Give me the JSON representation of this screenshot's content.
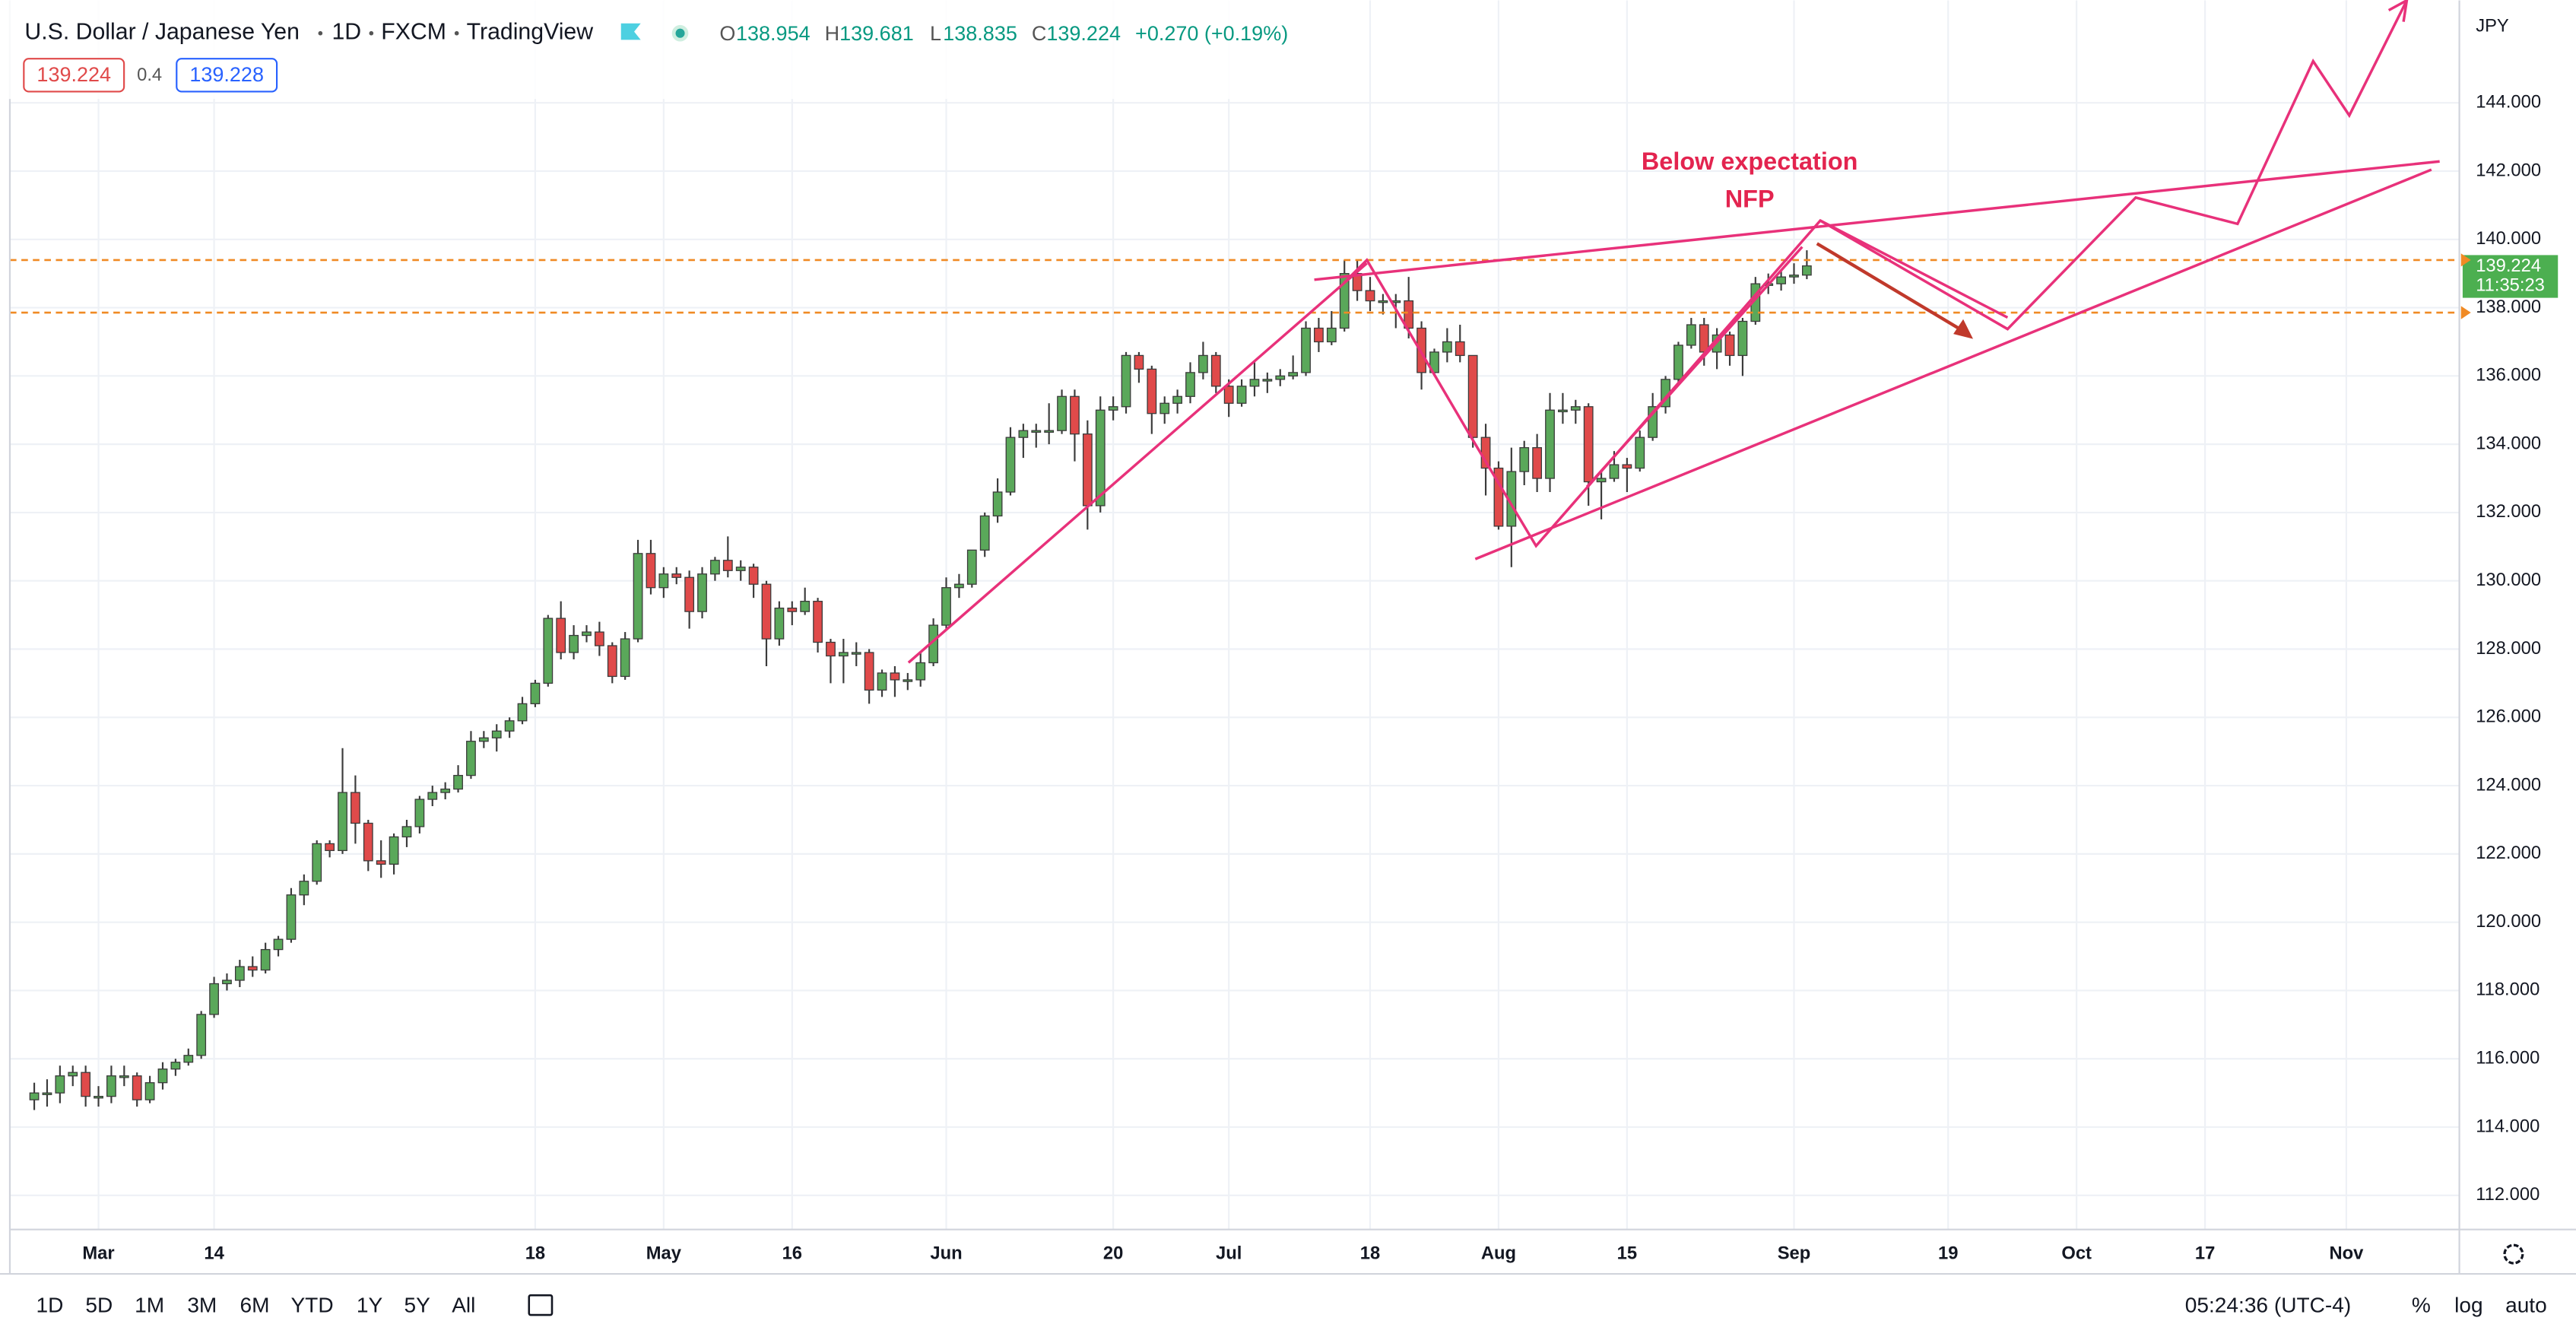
{
  "chart_data": {
    "type": "candlestick",
    "title": "U.S. Dollar / Japanese Yen",
    "interval": "1D",
    "source": "FXCM",
    "platform": "TradingView",
    "ohlc_prefixes": [
      "O",
      "H",
      "L",
      "C"
    ],
    "change": "+0.270 (+0.19%)",
    "quote": {
      "bid": "139.224",
      "spread": "0.4",
      "ask": "139.228"
    },
    "currency": "JPY",
    "countdown": "11:35:23",
    "annotation": [
      "Below expectation",
      "NFP"
    ],
    "up_color": "#5aa85a",
    "down_color": "#e04a4a",
    "grid": true,
    "xlim": [
      -1.9,
      188.8
    ],
    "xticks": [
      {
        "value": 5,
        "label": "Mar"
      },
      14,
      {
        "value": 39,
        "label": "18"
      },
      {
        "value": 49,
        "label": "May"
      },
      {
        "value": 59,
        "label": "16"
      },
      {
        "value": 71,
        "label": "Jun"
      },
      {
        "value": 84,
        "label": "20"
      },
      {
        "value": 93,
        "label": "Jul"
      },
      {
        "value": 104,
        "label": "18"
      },
      {
        "value": 114,
        "label": "Aug"
      },
      {
        "value": 124,
        "label": "15"
      },
      {
        "value": 137,
        "label": "Sep"
      },
      {
        "value": 149,
        "label": "19"
      },
      {
        "value": 159,
        "label": "Oct"
      },
      {
        "value": 169,
        "label": "17"
      },
      {
        "value": 180,
        "label": "Nov"
      }
    ],
    "ylim": [
      111,
      147
    ],
    "yticks": [
      {
        "value": 112,
        "label": "112.000"
      },
      {
        "value": 114,
        "label": "114.000"
      },
      {
        "value": 116,
        "label": "116.000"
      },
      {
        "value": 118,
        "label": "118.000"
      },
      {
        "value": 120,
        "label": "120.000"
      },
      {
        "value": 122,
        "label": "122.000"
      },
      {
        "value": 124,
        "label": "124.000"
      },
      {
        "value": 126,
        "label": "126.000"
      },
      {
        "value": 128,
        "label": "128.000"
      },
      {
        "value": 130,
        "label": "130.000"
      },
      {
        "value": 132,
        "label": "132.000"
      },
      {
        "value": 134,
        "label": "134.000"
      },
      {
        "value": 136,
        "label": "136.000"
      },
      {
        "value": 138,
        "label": "138.000"
      },
      {
        "value": 140,
        "label": "140.000"
      },
      {
        "value": 142,
        "label": "142.000"
      },
      {
        "value": 144,
        "label": "144.000"
      }
    ],
    "open": [
      114.8,
      115.0,
      115.0,
      115.5,
      115.6,
      114.9,
      114.9,
      115.5,
      115.5,
      114.8,
      115.3,
      115.7,
      115.9,
      116.1,
      117.3,
      118.2,
      118.3,
      118.7,
      118.6,
      119.2,
      119.5,
      120.8,
      121.2,
      122.3,
      122.1,
      123.8,
      122.9,
      121.8,
      121.7,
      122.5,
      122.8,
      123.6,
      123.8,
      123.9,
      124.3,
      125.3,
      125.4,
      125.6,
      125.9,
      126.4,
      127.0,
      128.9,
      127.9,
      128.4,
      128.5,
      128.1,
      127.2,
      128.3,
      130.8,
      129.8,
      130.2,
      130.1,
      129.1,
      130.2,
      130.6,
      130.3,
      130.4,
      129.9,
      128.3,
      129.2,
      129.1,
      129.4,
      128.2,
      127.8,
      127.9,
      127.9,
      126.8,
      127.3,
      127.1,
      127.1,
      127.6,
      128.7,
      129.8,
      129.9,
      130.9,
      131.9,
      132.6,
      134.2,
      134.4,
      134.4,
      134.4,
      135.4,
      134.3,
      132.2,
      135.0,
      135.1,
      136.6,
      136.2,
      134.9,
      135.2,
      135.4,
      136.1,
      136.6,
      135.7,
      135.2,
      135.7,
      135.9,
      135.9,
      136.0,
      136.1,
      137.4,
      137.0,
      137.4,
      139.0,
      138.5,
      138.2,
      138.2,
      138.2,
      137.4,
      136.1,
      136.7,
      137.0,
      136.6,
      134.2,
      133.3,
      131.6,
      133.2,
      133.9,
      133.0,
      135.0,
      135.0,
      135.1,
      132.9,
      133.0,
      133.4,
      133.3,
      134.2,
      135.1,
      135.9,
      136.9,
      137.5,
      136.7,
      137.2,
      136.6,
      137.6,
      138.7,
      138.7,
      138.9,
      138.954
    ],
    "high": [
      115.3,
      115.4,
      115.8,
      115.8,
      115.8,
      115.2,
      115.8,
      115.8,
      115.6,
      115.5,
      115.9,
      116.0,
      116.3,
      117.4,
      118.4,
      118.5,
      118.9,
      119.0,
      119.4,
      119.6,
      121.0,
      121.4,
      122.4,
      122.4,
      125.1,
      124.3,
      123.0,
      122.4,
      122.6,
      123.0,
      123.7,
      124.0,
      124.1,
      124.6,
      125.6,
      125.6,
      125.8,
      126.0,
      126.6,
      127.1,
      129.0,
      129.4,
      128.7,
      128.7,
      128.8,
      128.2,
      128.5,
      131.2,
      131.2,
      130.4,
      130.4,
      130.3,
      130.4,
      130.7,
      131.3,
      130.6,
      130.5,
      130.0,
      129.4,
      129.4,
      129.8,
      129.5,
      128.3,
      128.3,
      128.2,
      128.0,
      127.4,
      127.5,
      127.3,
      127.9,
      128.9,
      130.1,
      130.2,
      130.9,
      132.0,
      133.0,
      134.5,
      134.6,
      134.6,
      135.2,
      135.6,
      135.6,
      134.7,
      135.4,
      135.4,
      136.7,
      136.7,
      136.3,
      135.4,
      135.6,
      136.4,
      137.0,
      136.7,
      135.9,
      135.9,
      136.4,
      136.1,
      136.2,
      136.6,
      137.6,
      137.7,
      137.9,
      139.4,
      139.4,
      138.9,
      138.4,
      138.4,
      138.9,
      137.6,
      136.8,
      137.4,
      137.5,
      136.6,
      134.6,
      133.5,
      133.9,
      134.1,
      134.3,
      135.5,
      135.5,
      135.3,
      135.2,
      133.2,
      133.8,
      133.6,
      134.4,
      135.5,
      136.0,
      137.0,
      137.7,
      137.7,
      137.4,
      137.3,
      137.7,
      138.9,
      139.0,
      139.1,
      139.3,
      139.681
    ],
    "low": [
      114.5,
      114.6,
      114.7,
      115.2,
      114.6,
      114.6,
      114.7,
      115.2,
      114.6,
      114.7,
      115.1,
      115.5,
      115.8,
      116.0,
      117.2,
      118.0,
      118.1,
      118.4,
      118.5,
      119.0,
      119.4,
      120.5,
      121.1,
      121.9,
      122.0,
      122.3,
      121.5,
      121.3,
      121.4,
      122.2,
      122.6,
      123.4,
      123.6,
      123.8,
      124.2,
      125.1,
      125.0,
      125.4,
      125.8,
      126.3,
      126.9,
      127.7,
      127.7,
      128.2,
      127.8,
      127.0,
      127.1,
      128.2,
      129.6,
      129.5,
      129.9,
      128.6,
      128.9,
      130.0,
      130.1,
      130.0,
      129.5,
      127.5,
      128.1,
      128.7,
      129.0,
      127.9,
      127.0,
      127.0,
      127.5,
      126.4,
      126.6,
      126.6,
      126.8,
      126.9,
      127.5,
      128.6,
      129.5,
      129.8,
      130.7,
      131.7,
      132.5,
      133.6,
      133.9,
      134.0,
      134.3,
      133.5,
      131.5,
      132.0,
      134.7,
      134.9,
      135.8,
      134.3,
      134.6,
      134.9,
      135.2,
      135.9,
      135.5,
      134.8,
      135.1,
      135.4,
      135.5,
      135.7,
      135.9,
      136.0,
      136.7,
      136.9,
      137.3,
      138.2,
      137.9,
      137.8,
      137.4,
      137.1,
      135.6,
      136.0,
      136.4,
      136.4,
      133.9,
      132.5,
      131.5,
      130.4,
      132.8,
      132.6,
      132.6,
      134.6,
      134.6,
      132.2,
      131.8,
      132.9,
      132.6,
      133.2,
      134.1,
      134.9,
      135.8,
      136.8,
      136.3,
      136.2,
      136.3,
      136.0,
      137.5,
      138.4,
      138.5,
      138.7,
      138.835
    ],
    "close": [
      115.0,
      115.0,
      115.5,
      115.6,
      114.9,
      114.9,
      115.5,
      115.5,
      114.8,
      115.3,
      115.7,
      115.9,
      116.1,
      117.3,
      118.2,
      118.3,
      118.7,
      118.6,
      119.2,
      119.5,
      120.8,
      121.2,
      122.3,
      122.1,
      123.8,
      122.9,
      121.8,
      121.7,
      122.5,
      122.8,
      123.6,
      123.8,
      123.9,
      124.3,
      125.3,
      125.4,
      125.6,
      125.9,
      126.4,
      127.0,
      128.9,
      127.9,
      128.4,
      128.5,
      128.1,
      127.2,
      128.3,
      130.8,
      129.8,
      130.2,
      130.1,
      129.1,
      130.2,
      130.6,
      130.3,
      130.4,
      129.9,
      128.3,
      129.2,
      129.1,
      129.4,
      128.2,
      127.8,
      127.9,
      127.9,
      126.8,
      127.3,
      127.1,
      127.1,
      127.6,
      128.7,
      129.8,
      129.9,
      130.9,
      131.9,
      132.6,
      134.2,
      134.4,
      134.4,
      134.4,
      135.4,
      134.3,
      132.2,
      135.0,
      135.1,
      136.6,
      136.2,
      134.9,
      135.2,
      135.4,
      136.1,
      136.6,
      135.7,
      135.2,
      135.7,
      135.9,
      135.9,
      136.0,
      136.1,
      137.4,
      137.0,
      137.4,
      139.0,
      138.5,
      138.2,
      138.2,
      138.2,
      137.4,
      136.1,
      136.7,
      137.0,
      136.6,
      134.2,
      133.3,
      131.6,
      133.2,
      133.9,
      133.0,
      135.0,
      135.0,
      135.1,
      132.9,
      133.0,
      133.4,
      133.3,
      134.2,
      135.1,
      135.9,
      136.9,
      137.5,
      136.7,
      137.2,
      136.6,
      137.6,
      138.7,
      138.7,
      138.9,
      138.954,
      139.224
    ]
  },
  "toolbar": {
    "ranges": [
      "1D",
      "5D",
      "1M",
      "3M",
      "6M",
      "YTD",
      "1Y",
      "5Y",
      "All"
    ],
    "time": "05:24:36 (UTC-4)",
    "options": [
      "%",
      "log",
      "auto"
    ]
  }
}
